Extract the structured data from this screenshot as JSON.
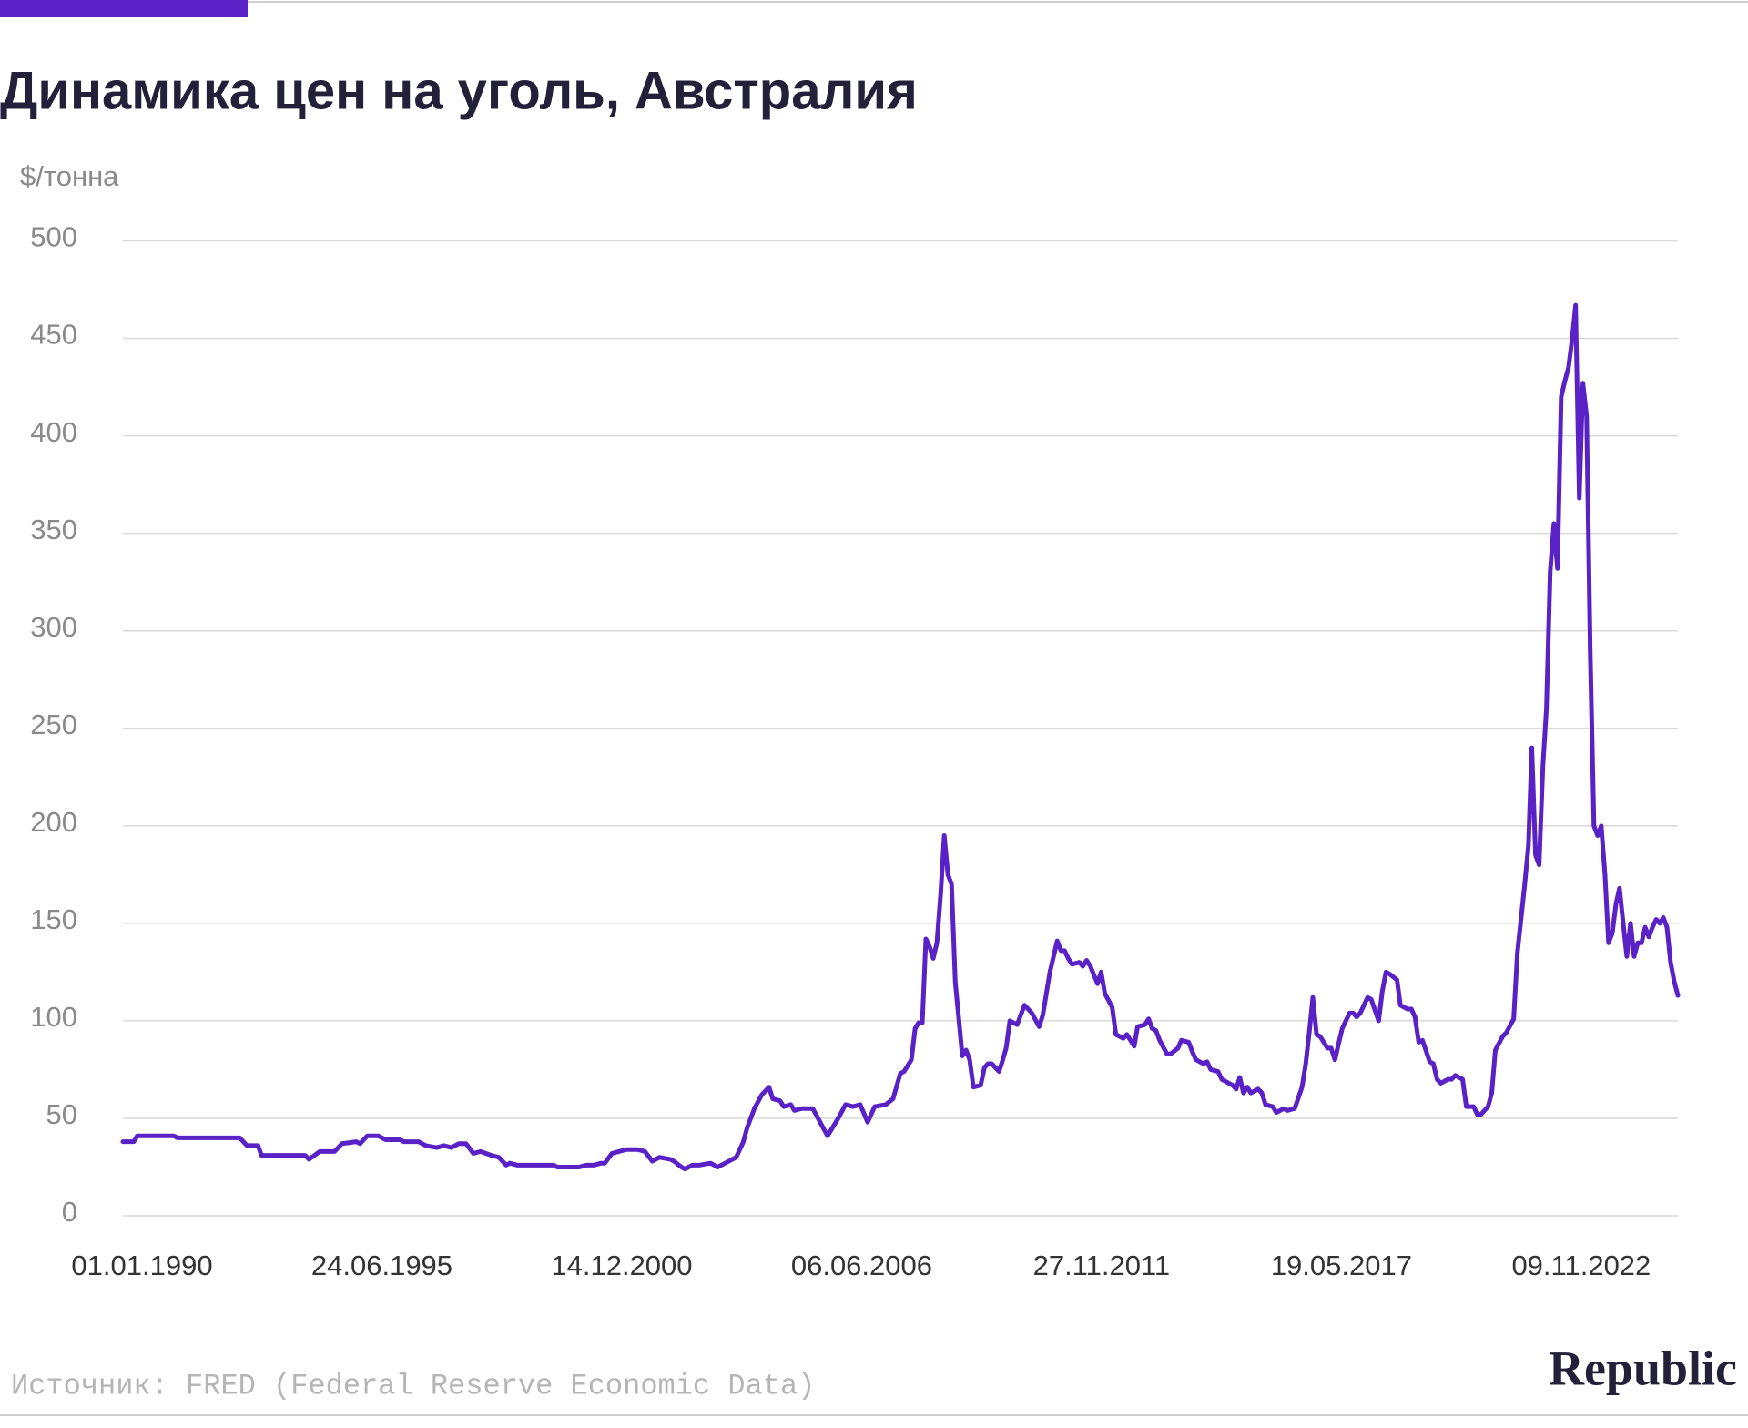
{
  "chart_data": {
    "type": "line",
    "title": "Динамика цен на уголь, Австралия",
    "y_label": "$/тонна",
    "source": "Источник: FRED (Federal Reserve Economic Data)",
    "brand": "Republic",
    "color": "#5a22c6",
    "grid": true,
    "xlim": [
      "01.01.1990",
      "01.07.2025"
    ],
    "xticks": [
      "01.01.1990",
      "24.06.1995",
      "14.12.2000",
      "06.06.2006",
      "27.11.2011",
      "19.05.2017",
      "09.11.2022"
    ],
    "ylim": [
      0,
      500
    ],
    "yticks": [
      0,
      50,
      100,
      150,
      200,
      250,
      300,
      350,
      400,
      450,
      500
    ],
    "x": [
      "01.01.1990",
      "01.04.1990",
      "01.05.1990",
      "01.03.1991",
      "01.04.1991",
      "01.09.1992",
      "01.11.1992",
      "01.02.1993",
      "01.03.1993",
      "01.03.1994",
      "01.04.1994",
      "01.07.1994",
      "01.11.1994",
      "01.01.1995",
      "01.05.1995",
      "01.06.1995",
      "01.08.1995",
      "01.11.1995",
      "01.01.1996",
      "01.05.1996",
      "01.06.1996",
      "01.10.1996",
      "01.12.1996",
      "01.03.1997",
      "01.05.1997",
      "01.07.1997",
      "01.09.1997",
      "01.11.1997",
      "01.01.1998",
      "01.03.1998",
      "01.06.1998",
      "01.08.1998",
      "01.10.1998",
      "01.11.1998",
      "01.01.1999",
      "01.11.1999",
      "01.12.1999",
      "01.06.2000",
      "01.08.2000",
      "01.10.2000",
      "01.12.2000",
      "01.01.2001",
      "01.03.2001",
      "01.05.2001",
      "01.07.2001",
      "01.10.2001",
      "01.12.2001",
      "01.02.2002",
      "01.04.2002",
      "01.07.2002",
      "01.08.2002",
      "01.10.2002",
      "01.11.2002",
      "01.01.2003",
      "01.03.2003",
      "01.06.2003",
      "01.08.2003",
      "01.10.2003",
      "01.01.2004",
      "01.03.2004",
      "01.04.2004",
      "01.06.2004",
      "01.08.2004",
      "01.10.2004",
      "01.11.2004",
      "01.01.2005",
      "01.02.2005",
      "01.04.2005",
      "01.05.2005",
      "01.07.2005",
      "01.10.2005",
      "01.12.2005",
      "01.02.2006",
      "01.05.2006",
      "01.07.2006",
      "01.09.2006",
      "01.11.2006",
      "01.01.2007",
      "01.03.2007",
      "01.06.2007",
      "01.08.2007",
      "01.10.2007",
      "01.11.2007",
      "01.01.2008",
      "01.02.2008",
      "01.03.2008",
      "01.04.2008",
      "01.05.2008",
      "01.06.2008",
      "01.07.2008",
      "01.08.2008",
      "01.09.2008",
      "01.10.2008",
      "01.11.2008",
      "01.12.2008",
      "01.01.2009",
      "01.02.2009",
      "01.03.2009",
      "01.04.2009",
      "01.05.2009",
      "01.06.2009",
      "01.08.2009",
      "01.09.2009",
      "01.10.2009",
      "01.11.2009",
      "01.01.2010",
      "01.02.2010",
      "01.03.2010",
      "01.04.2010",
      "01.06.2010",
      "01.07.2010",
      "01.08.2010",
      "01.09.2010",
      "01.10.2010",
      "01.12.2010",
      "01.01.2011",
      "01.03.2011",
      "01.05.2011",
      "01.06.2011",
      "01.07.2011",
      "01.08.2011",
      "01.09.2011",
      "01.11.2011",
      "01.12.2011",
      "01.01.2012",
      "01.02.2012",
      "01.04.2012",
      "01.05.2012",
      "01.06.2012",
      "01.08.2012",
      "01.09.2012",
      "01.11.2012",
      "01.12.2012",
      "01.02.2013",
      "01.03.2013",
      "01.05.2013",
      "01.06.2013",
      "01.07.2013",
      "01.08.2013",
      "01.09.2013",
      "01.11.2013",
      "01.12.2013",
      "01.02.2014",
      "01.03.2014",
      "01.05.2014",
      "01.06.2014",
      "01.07.2014",
      "01.09.2014",
      "01.10.2014",
      "01.11.2014",
      "01.01.2015",
      "01.02.2015",
      "01.04.2015",
      "01.05.2015",
      "01.06.2015",
      "01.07.2015",
      "01.08.2015",
      "01.09.2015",
      "01.10.2015",
      "01.12.2015",
      "01.01.2016",
      "01.02.2016",
      "01.04.2016",
      "01.05.2016",
      "01.07.2016",
      "01.08.2016",
      "01.10.2016",
      "01.12.2016",
      "01.01.2017",
      "01.02.2017",
      "01.03.2017",
      "01.04.2017",
      "01.05.2017",
      "01.07.2017",
      "01.08.2017",
      "01.09.2017",
      "01.10.2017",
      "01.11.2017",
      "01.01.2018",
      "01.02.2018",
      "01.03.2018",
      "01.04.2018",
      "01.06.2018",
      "01.07.2018",
      "01.09.2018",
      "01.10.2018",
      "01.11.2018",
      "01.12.2018",
      "01.02.2019",
      "01.03.2019",
      "01.05.2019",
      "01.06.2019",
      "01.07.2019",
      "01.08.2019",
      "01.09.2019",
      "01.11.2019",
      "01.12.2019",
      "01.01.2020",
      "01.02.2020",
      "01.04.2020",
      "01.05.2020",
      "01.06.2020",
      "01.08.2020",
      "01.09.2020",
      "01.11.2020",
      "01.12.2020",
      "01.01.2021",
      "01.03.2021",
      "01.04.2021",
      "01.05.2021",
      "01.07.2021",
      "01.08.2021",
      "01.10.2021",
      "01.11.2021",
      "01.01.2022",
      "01.02.2022",
      "01.03.2022",
      "01.04.2022",
      "01.05.2022",
      "01.06.2022",
      "01.07.2022",
      "01.08.2022",
      "01.09.2022",
      "01.10.2022",
      "01.11.2022",
      "01.12.2022",
      "01.01.2023",
      "01.02.2023",
      "01.03.2023",
      "01.04.2023",
      "01.05.2023",
      "01.06.2023",
      "01.07.2023",
      "01.08.2023",
      "01.09.2023",
      "01.10.2023",
      "01.11.2023",
      "01.12.2023",
      "01.01.2024",
      "01.02.2024",
      "01.03.2024",
      "01.04.2024",
      "01.05.2024",
      "01.06.2024",
      "01.07.2024",
      "01.08.2024",
      "01.09.2024",
      "01.10.2024",
      "01.11.2024",
      "01.12.2024",
      "01.01.2025",
      "01.02.2025",
      "01.03.2025",
      "01.04.2025",
      "01.05.2025",
      "01.06.2025",
      "01.07.2025"
    ],
    "values": [
      38,
      38,
      41,
      41,
      40,
      40,
      36,
      36,
      31,
      31,
      29,
      33,
      33,
      37,
      38,
      37,
      41,
      41,
      39,
      39,
      38,
      38,
      36,
      35,
      36,
      35,
      37,
      37,
      32,
      33,
      31,
      30,
      26,
      27,
      26,
      26,
      25,
      25,
      26,
      26,
      27,
      27,
      32,
      33,
      34,
      34,
      33,
      28,
      30,
      29,
      28,
      25,
      24,
      26,
      26,
      27,
      25,
      27,
      30,
      38,
      45,
      55,
      62,
      66,
      60,
      59,
      56,
      57,
      54,
      55,
      55,
      48,
      41,
      50,
      57,
      56,
      57,
      48,
      56,
      57,
      60,
      73,
      74,
      80,
      96,
      99,
      99,
      142,
      138,
      132,
      140,
      165,
      195,
      175,
      170,
      120,
      100,
      82,
      85,
      80,
      66,
      67,
      76,
      78,
      78,
      74,
      80,
      86,
      100,
      98,
      103,
      108,
      106,
      104,
      97,
      103,
      125,
      141,
      136,
      136,
      132,
      129,
      130,
      128,
      131,
      128,
      119,
      125,
      114,
      107,
      93,
      91,
      93,
      87,
      97,
      98,
      101,
      96,
      95,
      90,
      83,
      83,
      86,
      90,
      89,
      84,
      80,
      78,
      79,
      75,
      74,
      70,
      68,
      67,
      65,
      71,
      63,
      66,
      63,
      65,
      63,
      57,
      56,
      53,
      55,
      54,
      55,
      66,
      78,
      95,
      112,
      93,
      92,
      86,
      86,
      80,
      88,
      96,
      104,
      104,
      102,
      104,
      112,
      111,
      100,
      115,
      125,
      124,
      121,
      108,
      106,
      106,
      102,
      89,
      90,
      79,
      78,
      70,
      68,
      70,
      70,
      72,
      70,
      56,
      56,
      52,
      52,
      56,
      63,
      85,
      92,
      94,
      101,
      135,
      170,
      190,
      240,
      185,
      180,
      230,
      260,
      330,
      355,
      332,
      420,
      428,
      435,
      450,
      467,
      368,
      427,
      410,
      290,
      200,
      195,
      200,
      175,
      140,
      145,
      160,
      168,
      150,
      133,
      150,
      133,
      140,
      140,
      148,
      143,
      148,
      152,
      150,
      153,
      148,
      130,
      120,
      113
    ]
  }
}
